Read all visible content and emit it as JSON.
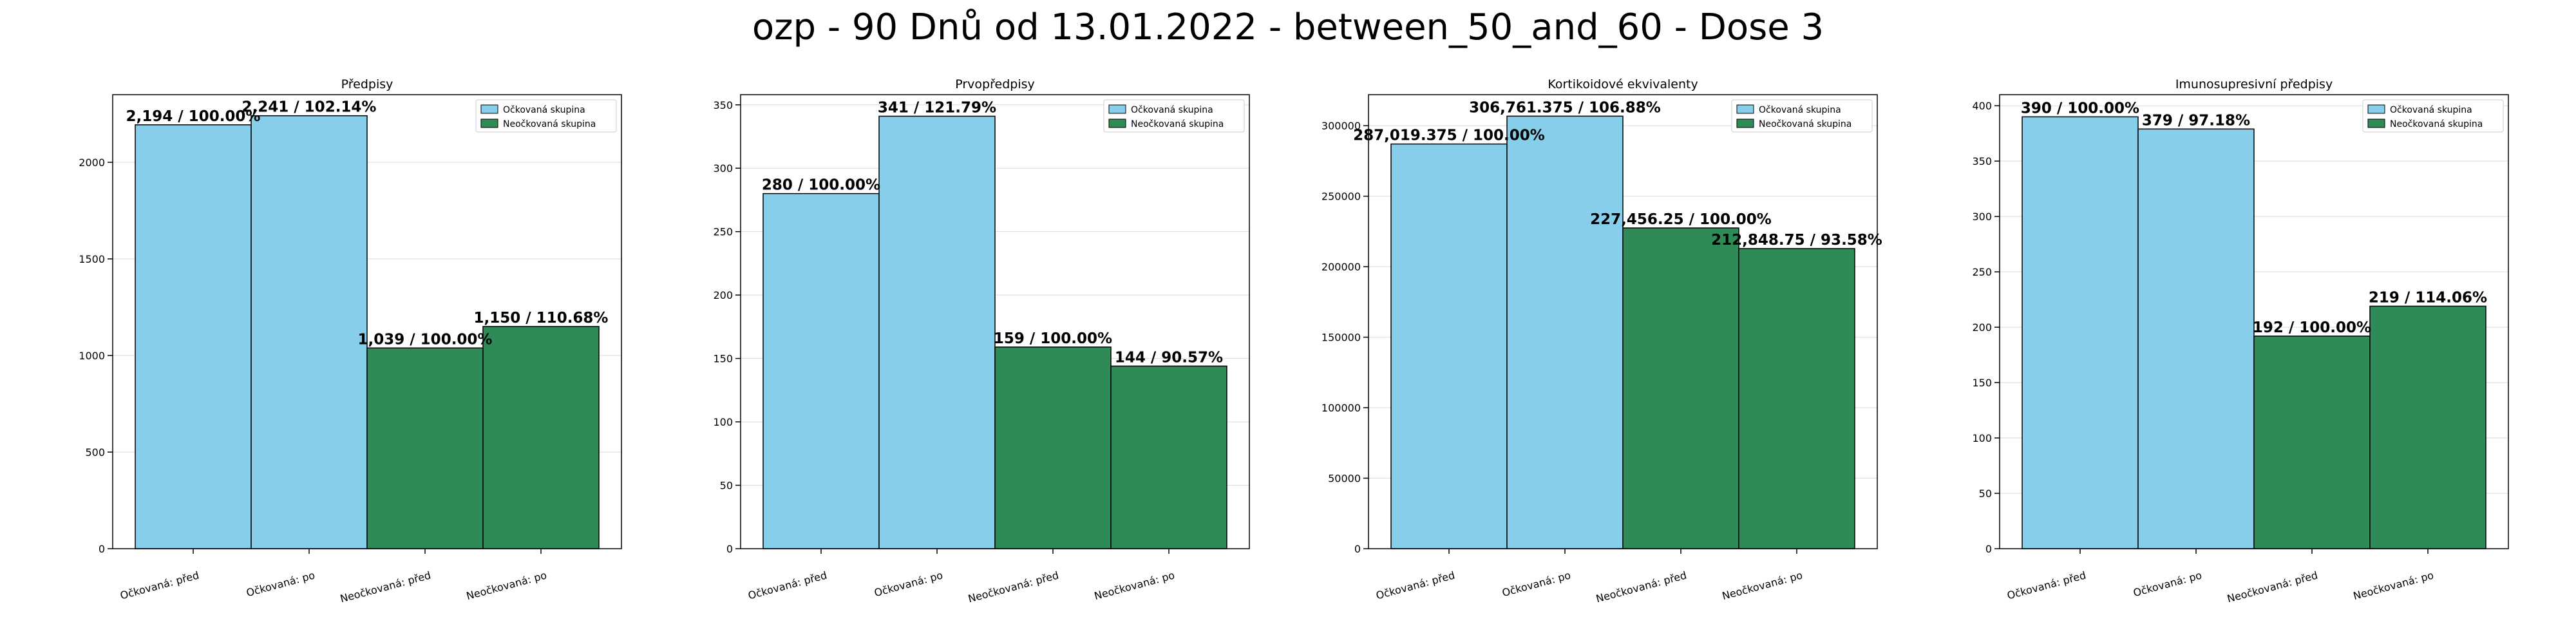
{
  "title": "ozp - 90 Dnů od 13.01.2022 - between_50_and_60 - Dose 3",
  "colors": {
    "vaccinated": "#87CEEB",
    "unvaccinated": "#2E8B57",
    "edge": "#000000",
    "grid": "#cccccc"
  },
  "legend": [
    "Očkovaná skupina",
    "Neočkovaná skupina"
  ],
  "chart_data": [
    {
      "type": "bar",
      "title": "Předpisy",
      "categories": [
        "Očkovaná: před",
        "Očkovaná: po",
        "Neočkovaná: před",
        "Neočkovaná: po"
      ],
      "values": [
        2194,
        2241,
        1039,
        1150
      ],
      "labels": [
        "2,194 / 100.00%",
        "2,241 / 102.14%",
        "1,039 / 100.00%",
        "1,150 / 110.68%"
      ],
      "ylim": [
        0,
        2350
      ],
      "yticks": [
        0,
        500,
        1000,
        1500,
        2000
      ],
      "grid": true,
      "legend_position": "top-right"
    },
    {
      "type": "bar",
      "title": "Prvopředpisy",
      "categories": [
        "Očkovaná: před",
        "Očkovaná: po",
        "Neočkovaná: před",
        "Neočkovaná: po"
      ],
      "values": [
        280,
        341,
        159,
        144
      ],
      "labels": [
        "280 / 100.00%",
        "341 / 121.79%",
        "159 / 100.00%",
        "144 / 90.57%"
      ],
      "ylim": [
        0,
        358
      ],
      "yticks": [
        0,
        50,
        100,
        150,
        200,
        250,
        300,
        350
      ],
      "grid": true,
      "legend_position": "top-right"
    },
    {
      "type": "bar",
      "title": "Kortikoidové ekvivalenty",
      "categories": [
        "Očkovaná: před",
        "Očkovaná: po",
        "Neočkovaná: před",
        "Neočkovaná: po"
      ],
      "values": [
        287019.375,
        306761.375,
        227456.25,
        212848.75
      ],
      "labels": [
        "287,019.375 / 100.00%",
        "306,761.375 / 106.88%",
        "227,456.25 / 100.00%",
        "212,848.75 / 93.58%"
      ],
      "ylim": [
        0,
        322000
      ],
      "yticks": [
        0,
        50000,
        100000,
        150000,
        200000,
        250000,
        300000
      ],
      "grid": true,
      "legend_position": "top-right"
    },
    {
      "type": "bar",
      "title": "Imunosupresivní předpisy",
      "categories": [
        "Očkovaná: před",
        "Očkovaná: po",
        "Neočkovaná: před",
        "Neočkovaná: po"
      ],
      "values": [
        390,
        379,
        192,
        219
      ],
      "labels": [
        "390 / 100.00%",
        "379 / 97.18%",
        "192 / 100.00%",
        "219 / 114.06%"
      ],
      "ylim": [
        0,
        410
      ],
      "yticks": [
        0,
        50,
        100,
        150,
        200,
        250,
        300,
        350,
        400
      ],
      "grid": true,
      "legend_position": "top-right"
    }
  ]
}
